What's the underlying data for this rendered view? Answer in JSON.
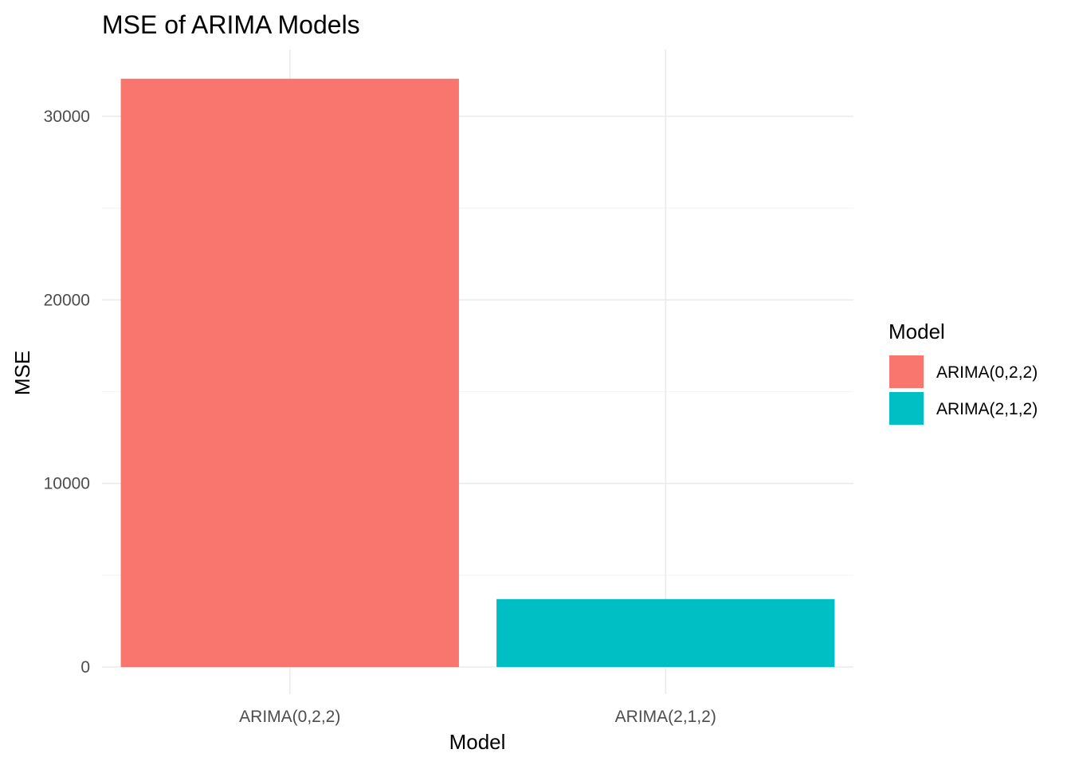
{
  "chart_data": {
    "type": "bar",
    "title": "MSE of ARIMA Models",
    "xlabel": "Model",
    "ylabel": "MSE",
    "categories": [
      "ARIMA(0,2,2)",
      "ARIMA(2,1,2)"
    ],
    "values": [
      32050,
      3700
    ],
    "colors": [
      "#F8766D",
      "#00BFC4"
    ],
    "ylim": [
      0,
      33600
    ],
    "yticks": [
      0,
      10000,
      20000,
      30000
    ],
    "ytick_labels": [
      "0",
      "10000",
      "20000",
      "30000"
    ],
    "grid": true,
    "legend": {
      "title": "Model",
      "placement": "right",
      "entries": [
        "ARIMA(0,2,2)",
        "ARIMA(2,1,2)"
      ]
    }
  }
}
